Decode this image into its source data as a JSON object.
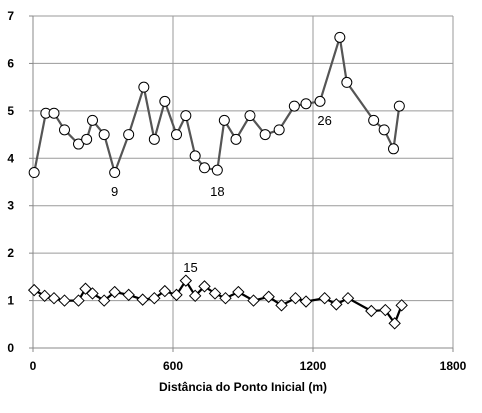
{
  "chart_data": {
    "type": "line",
    "title": "",
    "xlabel": "Distância do Ponto Inicial (m)",
    "ylabel": "",
    "xlim": [
      0,
      1800
    ],
    "ylim": [
      0,
      7
    ],
    "xticks": [
      0,
      600,
      1200,
      1800
    ],
    "yticks": [
      0,
      1,
      2,
      3,
      4,
      5,
      6,
      7
    ],
    "grid": {
      "x": true,
      "y": true
    },
    "legend": "none",
    "series": [
      {
        "marker": "circle",
        "color": "#555555",
        "x": [
          5,
          55,
          90,
          135,
          195,
          230,
          255,
          305,
          350,
          410,
          475,
          520,
          565,
          615,
          655,
          695,
          735,
          790,
          820,
          870,
          930,
          995,
          1055,
          1120,
          1170,
          1230,
          1315,
          1345,
          1460,
          1505,
          1545,
          1570
        ],
        "y": [
          3.7,
          4.95,
          4.95,
          4.6,
          4.3,
          4.4,
          4.8,
          4.5,
          3.7,
          4.5,
          5.5,
          4.4,
          5.2,
          4.5,
          4.9,
          4.05,
          3.8,
          3.75,
          4.8,
          4.4,
          4.9,
          4.5,
          4.6,
          5.1,
          5.15,
          5.2,
          6.55,
          5.6,
          4.8,
          4.6,
          4.2,
          5.1
        ]
      },
      {
        "marker": "diamond",
        "color": "#000000",
        "x": [
          5,
          50,
          90,
          135,
          195,
          225,
          255,
          305,
          350,
          410,
          470,
          520,
          565,
          615,
          655,
          695,
          735,
          780,
          825,
          880,
          945,
          1010,
          1065,
          1125,
          1170,
          1250,
          1300,
          1350,
          1450,
          1510,
          1550,
          1580
        ],
        "y": [
          1.22,
          1.1,
          1.05,
          1.0,
          1.0,
          1.25,
          1.15,
          1.0,
          1.18,
          1.12,
          1.02,
          1.05,
          1.2,
          1.12,
          1.42,
          1.1,
          1.3,
          1.15,
          1.05,
          1.18,
          1.0,
          1.08,
          0.9,
          1.05,
          0.98,
          1.05,
          0.92,
          1.05,
          0.78,
          0.8,
          0.52,
          0.9
        ]
      }
    ],
    "annotations": [
      {
        "text": "9",
        "x": 350,
        "y": 3.2
      },
      {
        "text": "18",
        "x": 790,
        "y": 3.2
      },
      {
        "text": "26",
        "x": 1250,
        "y": 4.7
      },
      {
        "text": "15",
        "x": 675,
        "y": 1.6
      }
    ]
  }
}
